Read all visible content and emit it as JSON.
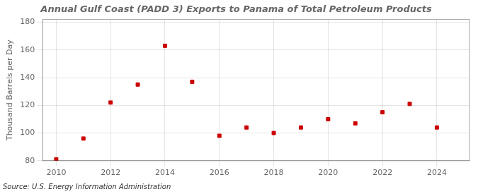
{
  "chart_data": {
    "type": "scatter",
    "title": "Annual Gulf Coast (PADD 3) Exports to Panama of Total Petroleum Products",
    "ylabel": "Thousand Barrels per Day",
    "annotations": [
      "Source: U.S. Energy Information Administration"
    ],
    "x": [
      2010,
      2011,
      2012,
      2013,
      2014,
      2015,
      2016,
      2017,
      2018,
      2019,
      2020,
      2021,
      2022,
      2023,
      2024
    ],
    "values": [
      81,
      96,
      122,
      135,
      163,
      137,
      98,
      104,
      100,
      104,
      110,
      107,
      115,
      121,
      104
    ],
    "color": "#cc0000",
    "marker": "square",
    "xlim": [
      2009.5,
      2025.2
    ],
    "ylim": [
      80,
      182
    ],
    "xticks": [
      2010,
      2012,
      2014,
      2016,
      2018,
      2020,
      2022,
      2024
    ],
    "yticks": [
      80,
      100,
      120,
      140,
      160,
      180
    ],
    "grid": true
  }
}
